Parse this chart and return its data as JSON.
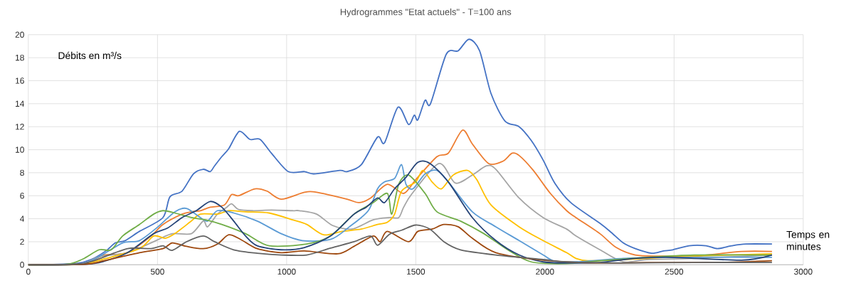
{
  "chart_data": {
    "type": "line",
    "title": "Hydrogrammes \"Etat actuels\" - T=100 ans",
    "xlabel": "Temps en minutes",
    "ylabel": "Débits en m³/s",
    "xlim": [
      0,
      3000
    ],
    "xticks": [
      0,
      500,
      1000,
      1500,
      2000,
      2500,
      3000
    ],
    "ylim": [
      0,
      20
    ],
    "yticks": [
      0,
      2,
      4,
      6,
      8,
      10,
      12,
      14,
      16,
      18,
      20
    ],
    "grid": true,
    "marker": "none",
    "line_style": "solid",
    "series": [
      {
        "color": "#4472c4",
        "x": [
          0,
          183,
          247,
          300,
          337,
          375,
          430,
          521,
          548,
          595,
          639,
          677,
          704,
          721,
          749,
          776,
          817,
          858,
          897,
          941,
          1006,
          1069,
          1105,
          1206,
          1234,
          1289,
          1352,
          1379,
          1431,
          1472,
          1494,
          1508,
          1536,
          1557,
          1618,
          1664,
          1706,
          1747,
          1791,
          1845,
          1900,
          1947,
          1993,
          2038,
          2100,
          2213,
          2257,
          2303,
          2350,
          2413,
          2459,
          2495,
          2558,
          2624,
          2668,
          2723,
          2778,
          2879
        ],
        "values": [
          0,
          0.1,
          0.5,
          1.2,
          1.9,
          2.1,
          2.9,
          4.1,
          5.9,
          6.4,
          7.9,
          8.3,
          8.1,
          8.6,
          9.4,
          10.1,
          11.6,
          10.9,
          10.9,
          9.7,
          8.1,
          8.1,
          7.9,
          8.2,
          8.1,
          8.7,
          11.1,
          10.6,
          13.7,
          12.2,
          13.0,
          12.6,
          14.3,
          14.0,
          18.3,
          18.6,
          19.6,
          18.6,
          14.9,
          12.5,
          12.0,
          10.8,
          9.1,
          7.1,
          5.4,
          3.6,
          2.8,
          1.9,
          1.4,
          1.0,
          1.2,
          1.3,
          1.65,
          1.65,
          1.4,
          1.65,
          1.8,
          1.8
        ]
      },
      {
        "color": "#ed7d31",
        "x": [
          0,
          200,
          247,
          293,
          384,
          475,
          521,
          595,
          631,
          666,
          704,
          759,
          787,
          814,
          877,
          924,
          979,
          1069,
          1116,
          1234,
          1280,
          1325,
          1390,
          1453,
          1500,
          1582,
          1626,
          1681,
          1719,
          1782,
          1837,
          1873,
          1900,
          1955,
          2021,
          2084,
          2120,
          2213,
          2276,
          2350,
          2440,
          2578,
          2761,
          2879
        ],
        "values": [
          0,
          0.05,
          0.35,
          0.85,
          1.05,
          2.5,
          3.5,
          4.4,
          4.6,
          4.7,
          5.0,
          5.2,
          6.1,
          6.0,
          6.6,
          6.4,
          5.7,
          6.3,
          6.3,
          5.7,
          5.4,
          5.8,
          7.0,
          6.2,
          7.4,
          9.4,
          9.7,
          11.7,
          10.5,
          8.8,
          9.0,
          9.7,
          9.5,
          8.2,
          6.2,
          4.7,
          4.1,
          2.7,
          1.5,
          0.85,
          0.75,
          0.75,
          1.15,
          1.15
        ]
      },
      {
        "color": "#a5a5a5",
        "x": [
          0,
          200,
          274,
          384,
          494,
          557,
          631,
          677,
          694,
          732,
          768,
          787,
          814,
          869,
          941,
          1023,
          1050,
          1116,
          1179,
          1253,
          1335,
          1398,
          1434,
          1453,
          1486,
          1590,
          1653,
          1719,
          1774,
          1810,
          1900,
          1993,
          2084,
          2120,
          2213,
          2303,
          2394,
          2578,
          2879
        ],
        "values": [
          0,
          0.05,
          0.7,
          1.05,
          2.1,
          2.7,
          2.7,
          3.8,
          3.3,
          4.4,
          5.0,
          5.3,
          4.8,
          4.7,
          4.75,
          4.7,
          4.7,
          4.4,
          3.4,
          3.1,
          3.9,
          4.1,
          4.1,
          5.0,
          6.2,
          8.8,
          7.1,
          7.8,
          8.6,
          8.3,
          5.8,
          4.1,
          3.1,
          2.5,
          1.3,
          0.25,
          0.45,
          0.55,
          0.85
        ]
      },
      {
        "color": "#ffc000",
        "x": [
          0,
          200,
          293,
          430,
          485,
          530,
          567,
          631,
          666,
          732,
          776,
          841,
          932,
          1023,
          1078,
          1143,
          1215,
          1289,
          1352,
          1390,
          1418,
          1445,
          1500,
          1527,
          1563,
          1599,
          1645,
          1700,
          1736,
          1791,
          1900,
          1993,
          2084,
          2120,
          2166,
          2303,
          2578,
          2879
        ],
        "values": [
          0,
          0.05,
          0.5,
          1.4,
          2.5,
          2.3,
          2.7,
          3.8,
          4.4,
          4.4,
          4.7,
          4.6,
          4.5,
          3.9,
          3.5,
          2.6,
          2.9,
          3.1,
          3.5,
          3.7,
          4.4,
          6.4,
          7.2,
          8.2,
          7.2,
          6.6,
          7.8,
          8.2,
          7.4,
          5.2,
          3.3,
          2.1,
          1.05,
          0.55,
          0.35,
          0.45,
          0.75,
          0.95
        ]
      },
      {
        "color": "#5b9bd5",
        "x": [
          0,
          200,
          274,
          365,
          430,
          502,
          567,
          612,
          666,
          694,
          732,
          795,
          886,
          979,
          1061,
          1170,
          1243,
          1316,
          1352,
          1379,
          1418,
          1445,
          1462,
          1489,
          1536,
          1582,
          1626,
          1719,
          1810,
          1900,
          1993,
          2038,
          2120,
          2303,
          2487,
          2879
        ],
        "values": [
          0,
          0.05,
          0.7,
          1.9,
          2.1,
          3.3,
          4.6,
          4.9,
          4.1,
          3.8,
          4.7,
          4.5,
          3.8,
          2.7,
          2.1,
          2.2,
          3.3,
          4.7,
          6.6,
          7.2,
          7.5,
          8.7,
          7.0,
          6.6,
          7.9,
          8.2,
          7.2,
          4.6,
          3.3,
          2.1,
          0.85,
          0.3,
          0.25,
          0.55,
          0.65,
          0.65
        ]
      },
      {
        "color": "#70ad47",
        "x": [
          0,
          150,
          211,
          274,
          321,
          365,
          430,
          485,
          521,
          567,
          631,
          686,
          749,
          841,
          932,
          1078,
          1170,
          1261,
          1335,
          1390,
          1407,
          1434,
          1472,
          1536,
          1582,
          1673,
          1764,
          1856,
          1947,
          2084,
          2213,
          2394,
          2578,
          2879
        ],
        "values": [
          0,
          0.05,
          0.5,
          1.3,
          1.3,
          2.5,
          3.5,
          4.4,
          4.7,
          4.5,
          4.1,
          3.9,
          3.5,
          2.7,
          1.65,
          1.8,
          2.5,
          4.4,
          5.4,
          6.2,
          4.4,
          7.0,
          7.8,
          6.2,
          4.6,
          3.8,
          2.7,
          1.3,
          0.25,
          0.1,
          0.35,
          0.65,
          0.85,
          0.85
        ]
      },
      {
        "color": "#264478",
        "x": [
          0,
          220,
          293,
          384,
          485,
          540,
          595,
          650,
          704,
          749,
          795,
          841,
          886,
          979,
          1069,
          1170,
          1261,
          1308,
          1352,
          1379,
          1418,
          1462,
          1508,
          1555,
          1626,
          1719,
          1810,
          1900,
          1993,
          2084,
          2213,
          2350,
          2487,
          2761,
          2879
        ],
        "values": [
          0,
          0.05,
          0.3,
          1.05,
          2.7,
          3.2,
          4.1,
          4.7,
          5.5,
          5.0,
          3.8,
          2.5,
          1.65,
          1.3,
          1.5,
          2.5,
          4.4,
          5.0,
          5.8,
          5.4,
          6.6,
          7.6,
          8.9,
          8.8,
          7.2,
          4.1,
          2.1,
          0.85,
          0.25,
          0.15,
          0.2,
          0.55,
          0.65,
          0.4,
          0.85
        ]
      },
      {
        "color": "#9e480e",
        "x": [
          0,
          220,
          293,
          430,
          521,
          557,
          612,
          677,
          732,
          776,
          822,
          886,
          979,
          1069,
          1198,
          1261,
          1335,
          1362,
          1390,
          1472,
          1508,
          1563,
          1609,
          1664,
          1719,
          1810,
          1993,
          2213,
          2394,
          2668,
          2879
        ],
        "values": [
          0,
          0.05,
          0.35,
          1.05,
          1.4,
          1.9,
          1.6,
          1.4,
          1.8,
          2.6,
          2.2,
          1.4,
          1.05,
          1.2,
          0.95,
          1.6,
          2.5,
          2.0,
          2.9,
          2.0,
          2.9,
          3.1,
          3.5,
          3.3,
          2.3,
          1.05,
          0.4,
          0.15,
          0.2,
          0.2,
          0.35
        ]
      },
      {
        "color": "#636363",
        "x": [
          0,
          180,
          247,
          384,
          475,
          521,
          557,
          612,
          677,
          721,
          795,
          886,
          979,
          1078,
          1170,
          1261,
          1325,
          1352,
          1398,
          1445,
          1500,
          1555,
          1609,
          1673,
          1810,
          1993,
          2084,
          2303,
          2578,
          2879
        ],
        "values": [
          0,
          0.05,
          0.3,
          1.4,
          1.4,
          1.65,
          1.25,
          2.0,
          2.5,
          2.0,
          1.3,
          1.0,
          0.85,
          0.85,
          1.45,
          2.0,
          2.5,
          1.7,
          2.65,
          3.0,
          3.45,
          3.1,
          2.0,
          1.3,
          0.85,
          0.45,
          0.25,
          0.15,
          0.2,
          0.2
        ]
      }
    ]
  }
}
